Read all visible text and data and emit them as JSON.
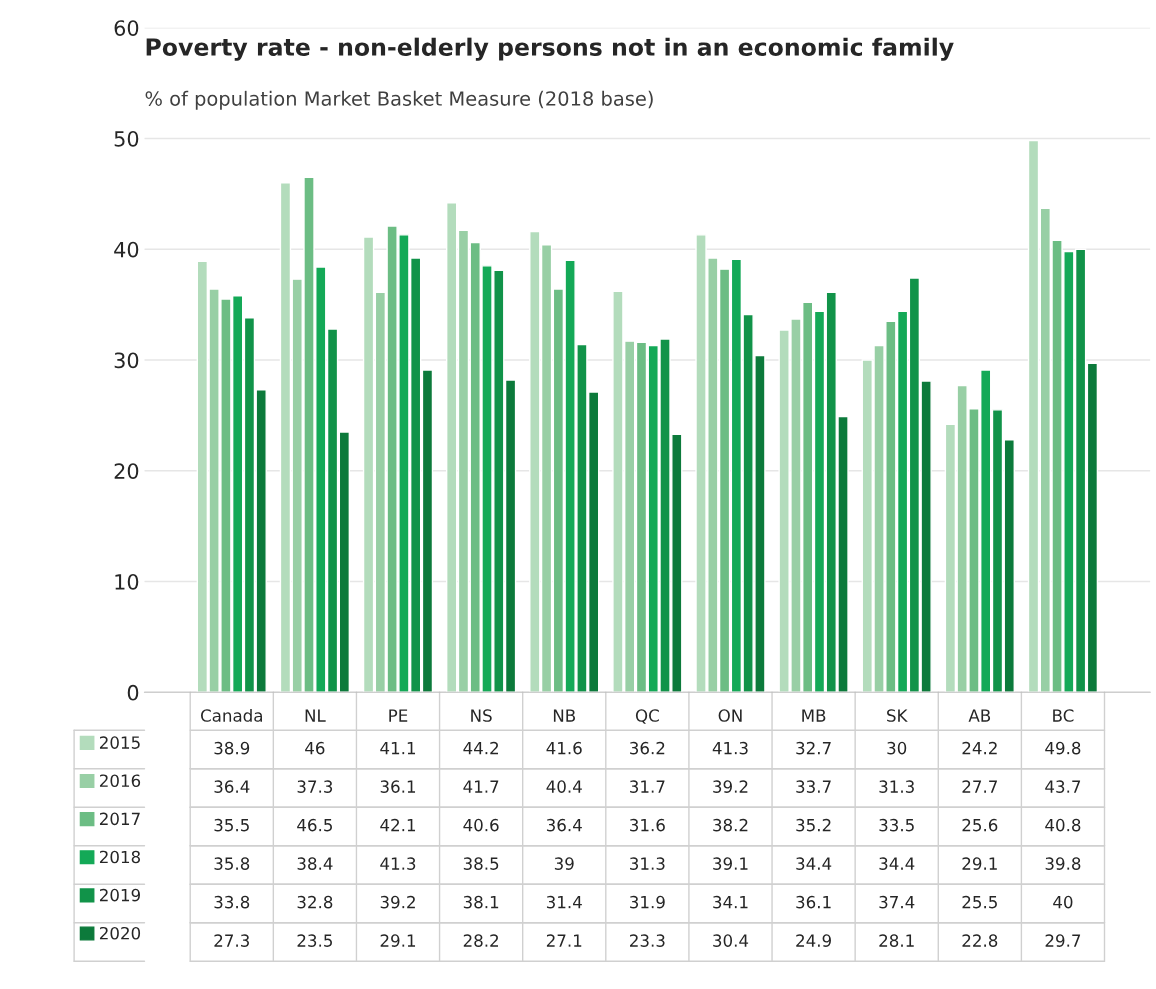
{
  "chart_data": {
    "type": "bar",
    "title": "Poverty rate - non-elderly persons not in an economic family",
    "subtitle": "% of population Market Basket Measure (2018 base)",
    "categories": [
      "Canada",
      "NL",
      "PE",
      "NS",
      "NB",
      "QC",
      "ON",
      "MB",
      "SK",
      "AB",
      "BC"
    ],
    "series": [
      {
        "name": "2015",
        "color": "#b3dcbc",
        "values": [
          38.9,
          46,
          41.1,
          44.2,
          41.6,
          36.2,
          41.3,
          32.7,
          30,
          24.2,
          49.8
        ]
      },
      {
        "name": "2016",
        "color": "#98cfa5",
        "values": [
          36.4,
          37.3,
          36.1,
          41.7,
          40.4,
          31.7,
          39.2,
          33.7,
          31.3,
          27.7,
          43.7
        ]
      },
      {
        "name": "2017",
        "color": "#6cbd84",
        "values": [
          35.5,
          46.5,
          42.1,
          40.6,
          36.4,
          31.6,
          38.2,
          35.2,
          33.5,
          25.6,
          40.8
        ]
      },
      {
        "name": "2018",
        "color": "#14a957",
        "values": [
          35.8,
          38.4,
          41.3,
          38.5,
          39,
          31.3,
          39.1,
          34.4,
          34.4,
          29.1,
          39.8
        ]
      },
      {
        "name": "2019",
        "color": "#119349",
        "values": [
          33.8,
          32.8,
          39.2,
          38.1,
          31.4,
          31.9,
          34.1,
          36.1,
          37.4,
          25.5,
          40
        ]
      },
      {
        "name": "2020",
        "color": "#0c7a3b",
        "values": [
          27.3,
          23.5,
          29.1,
          28.2,
          27.1,
          23.3,
          30.4,
          24.9,
          28.1,
          22.8,
          29.7
        ]
      }
    ],
    "ylim": [
      0,
      60
    ],
    "yticks": [
      0,
      10,
      20,
      30,
      40,
      50,
      60
    ],
    "grid": "y",
    "data_labels": true,
    "legend": "bottom"
  }
}
